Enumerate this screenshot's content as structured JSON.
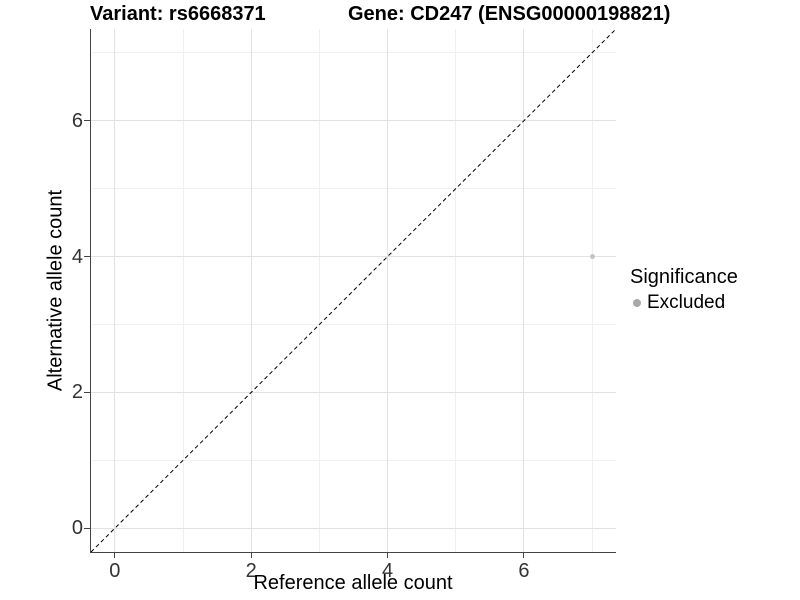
{
  "titles": {
    "variant": "Variant: rs6668371",
    "gene": "Gene: CD247 (ENSG00000198821)"
  },
  "axes": {
    "x": {
      "title": "Reference allele count",
      "tick_labels": [
        "0",
        "2",
        "4",
        "6"
      ]
    },
    "y": {
      "title": "Alternative allele count",
      "tick_labels": [
        "0",
        "2",
        "4",
        "6"
      ]
    }
  },
  "legend": {
    "title": "Significance",
    "items": [
      {
        "label": "Excluded",
        "color": "#A9A9A9"
      }
    ]
  },
  "colors": {
    "background": "#FFFFFF",
    "axis_line": "#444444",
    "gridline_major": "#E2E2E2",
    "gridline_minor": "#F0F0F0",
    "identity_line": "#000000",
    "point": "#C4C4C4",
    "tick_text": "#333333",
    "title_text": "#000000"
  },
  "chart_data": {
    "type": "scatter",
    "title_left": "Variant: rs6668371",
    "title_right": "Gene: CD247 (ENSG00000198821)",
    "xlabel": "Reference allele count",
    "ylabel": "Alternative allele count",
    "xlim": [
      -0.35,
      7.35
    ],
    "ylim": [
      -0.35,
      7.35
    ],
    "x_breaks": [
      0,
      2,
      4,
      6
    ],
    "y_breaks": [
      0,
      2,
      4,
      6
    ],
    "x_minor_breaks": [
      1,
      3,
      5,
      7
    ],
    "y_minor_breaks": [
      1,
      3,
      5,
      7
    ],
    "grid": true,
    "legend_position": "right",
    "identity_line": {
      "style": "dashed",
      "from": [
        -0.35,
        -0.35
      ],
      "to": [
        7.35,
        7.35
      ],
      "color": "#000000",
      "dash": [
        4,
        3
      ]
    },
    "series": [
      {
        "name": "Excluded",
        "color": "#C4C4C4",
        "point_radius": 2.5,
        "points": [
          {
            "x": 7,
            "y": 4
          }
        ]
      }
    ]
  }
}
